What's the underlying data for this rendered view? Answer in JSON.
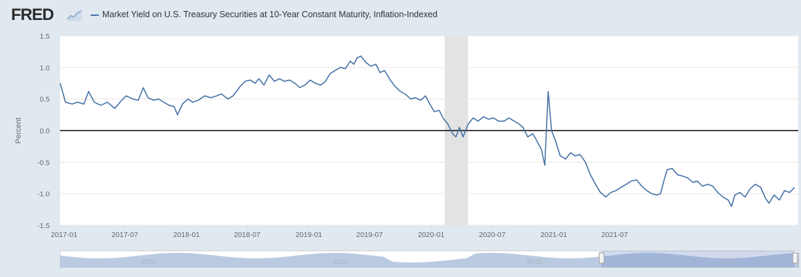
{
  "header": {
    "logo_text": "FRED",
    "logo_icon": "fred-chart-icon",
    "legend_label": "Market Yield on U.S. Treasury Securities at 10-Year Constant Maturity, Inflation-Indexed"
  },
  "colors": {
    "series": "#4572a7",
    "recession": "#e3e3e3",
    "zero_line": "#000000",
    "background": "#e1e9f0"
  },
  "navigator": {
    "labels": [
      "2005",
      "2010",
      "2015",
      "2020"
    ]
  },
  "chart_data": {
    "type": "line",
    "ylabel": "Percent",
    "ylim": [
      -1.5,
      1.5
    ],
    "y_ticks": [
      1.5,
      1.0,
      0.5,
      0.0,
      -0.5,
      -1.0,
      -1.5
    ],
    "x_ticks": [
      "2017-01",
      "2017-07",
      "2018-01",
      "2018-07",
      "2019-01",
      "2019-07",
      "2020-01",
      "2020-07",
      "2021-01",
      "2021-07"
    ],
    "grid": true,
    "recession_shading": {
      "start": "2020-02",
      "end": "2020-04"
    },
    "series": [
      {
        "values": [
          [
            "2016-12-20",
            0.75
          ],
          [
            "2017-01-05",
            0.45
          ],
          [
            "2017-01-25",
            0.42
          ],
          [
            "2017-02-10",
            0.45
          ],
          [
            "2017-03-01",
            0.42
          ],
          [
            "2017-03-15",
            0.62
          ],
          [
            "2017-04-01",
            0.45
          ],
          [
            "2017-04-20",
            0.4
          ],
          [
            "2017-05-10",
            0.45
          ],
          [
            "2017-06-01",
            0.35
          ],
          [
            "2017-06-20",
            0.47
          ],
          [
            "2017-07-05",
            0.55
          ],
          [
            "2017-07-25",
            0.5
          ],
          [
            "2017-08-10",
            0.48
          ],
          [
            "2017-08-25",
            0.68
          ],
          [
            "2017-09-08",
            0.52
          ],
          [
            "2017-09-25",
            0.48
          ],
          [
            "2017-10-10",
            0.5
          ],
          [
            "2017-10-25",
            0.45
          ],
          [
            "2017-11-10",
            0.4
          ],
          [
            "2017-11-25",
            0.38
          ],
          [
            "2017-12-05",
            0.25
          ],
          [
            "2017-12-20",
            0.42
          ],
          [
            "2018-01-05",
            0.5
          ],
          [
            "2018-01-20",
            0.45
          ],
          [
            "2018-02-05",
            0.48
          ],
          [
            "2018-02-25",
            0.55
          ],
          [
            "2018-03-15",
            0.52
          ],
          [
            "2018-04-01",
            0.55
          ],
          [
            "2018-04-15",
            0.58
          ],
          [
            "2018-05-05",
            0.5
          ],
          [
            "2018-05-20",
            0.55
          ],
          [
            "2018-06-10",
            0.7
          ],
          [
            "2018-06-25",
            0.78
          ],
          [
            "2018-07-10",
            0.8
          ],
          [
            "2018-07-25",
            0.75
          ],
          [
            "2018-08-05",
            0.82
          ],
          [
            "2018-08-20",
            0.72
          ],
          [
            "2018-09-05",
            0.88
          ],
          [
            "2018-09-20",
            0.78
          ],
          [
            "2018-10-05",
            0.82
          ],
          [
            "2018-10-20",
            0.78
          ],
          [
            "2018-11-05",
            0.8
          ],
          [
            "2018-11-20",
            0.75
          ],
          [
            "2018-12-05",
            0.68
          ],
          [
            "2018-12-20",
            0.72
          ],
          [
            "2019-01-05",
            0.8
          ],
          [
            "2019-01-20",
            0.75
          ],
          [
            "2019-02-05",
            0.72
          ],
          [
            "2019-02-20",
            0.78
          ],
          [
            "2019-03-05",
            0.9
          ],
          [
            "2019-03-20",
            0.95
          ],
          [
            "2019-04-05",
            1.0
          ],
          [
            "2019-04-20",
            0.98
          ],
          [
            "2019-05-05",
            1.1
          ],
          [
            "2019-05-15",
            1.05
          ],
          [
            "2019-05-25",
            1.15
          ],
          [
            "2019-06-05",
            1.18
          ],
          [
            "2019-06-20",
            1.08
          ],
          [
            "2019-07-05",
            1.02
          ],
          [
            "2019-07-20",
            1.05
          ],
          [
            "2019-08-01",
            0.92
          ],
          [
            "2019-08-15",
            0.95
          ],
          [
            "2019-09-01",
            0.8
          ],
          [
            "2019-09-15",
            0.7
          ],
          [
            "2019-10-01",
            0.62
          ],
          [
            "2019-10-15",
            0.58
          ],
          [
            "2019-11-01",
            0.5
          ],
          [
            "2019-11-15",
            0.52
          ],
          [
            "2019-12-01",
            0.48
          ],
          [
            "2019-12-15",
            0.55
          ],
          [
            "2019-12-30",
            0.4
          ],
          [
            "2020-01-10",
            0.3
          ],
          [
            "2020-01-25",
            0.32
          ],
          [
            "2020-02-05",
            0.2
          ],
          [
            "2020-02-20",
            0.1
          ],
          [
            "2020-03-05",
            -0.05
          ],
          [
            "2020-03-15",
            -0.1
          ],
          [
            "2020-03-25",
            0.05
          ],
          [
            "2020-04-05",
            -0.1
          ],
          [
            "2020-04-20",
            0.1
          ],
          [
            "2020-05-05",
            0.2
          ],
          [
            "2020-05-20",
            0.15
          ],
          [
            "2020-06-05",
            0.22
          ],
          [
            "2020-06-20",
            0.18
          ],
          [
            "2020-07-05",
            0.2
          ],
          [
            "2020-07-20",
            0.15
          ],
          [
            "2020-08-05",
            0.15
          ],
          [
            "2020-08-20",
            0.2
          ],
          [
            "2020-09-05",
            0.15
          ],
          [
            "2020-09-20",
            0.1
          ],
          [
            "2020-10-01",
            0.05
          ],
          [
            "2020-10-15",
            -0.1
          ],
          [
            "2020-10-30",
            -0.05
          ],
          [
            "2020-11-10",
            -0.15
          ],
          [
            "2020-11-25",
            -0.3
          ],
          [
            "2020-12-05",
            -0.55
          ],
          [
            "2020-12-15",
            0.62
          ],
          [
            "2020-12-25",
            0.0
          ],
          [
            "2021-01-05",
            -0.15
          ],
          [
            "2021-01-20",
            -0.4
          ],
          [
            "2021-02-05",
            -0.45
          ],
          [
            "2021-02-20",
            -0.35
          ],
          [
            "2021-03-05",
            -0.4
          ],
          [
            "2021-03-20",
            -0.38
          ],
          [
            "2021-04-05",
            -0.5
          ],
          [
            "2021-04-20",
            -0.7
          ],
          [
            "2021-05-05",
            -0.85
          ],
          [
            "2021-05-20",
            -0.98
          ],
          [
            "2021-06-05",
            -1.05
          ],
          [
            "2021-06-20",
            -0.98
          ],
          [
            "2021-07-05",
            -0.95
          ],
          [
            "2021-07-20",
            -0.9
          ],
          [
            "2021-08-05",
            -0.85
          ],
          [
            "2021-08-20",
            -0.8
          ],
          [
            "2021-09-05",
            -0.78
          ],
          [
            "2021-09-20",
            -0.88
          ],
          [
            "2021-10-05",
            -0.95
          ],
          [
            "2021-10-20",
            -1.0
          ],
          [
            "2021-11-05",
            -1.02
          ],
          [
            "2021-11-15",
            -1.0
          ],
          [
            "2021-11-25",
            -0.8
          ],
          [
            "2021-12-05",
            -0.62
          ],
          [
            "2021-12-20",
            -0.6
          ],
          [
            "2022-01-05",
            -0.7
          ],
          [
            "2022-01-20",
            -0.72
          ],
          [
            "2022-02-05",
            -0.75
          ],
          [
            "2022-02-20",
            -0.82
          ],
          [
            "2022-03-05",
            -0.8
          ],
          [
            "2022-03-20",
            -0.88
          ],
          [
            "2022-04-05",
            -0.85
          ],
          [
            "2022-04-20",
            -0.88
          ],
          [
            "2022-05-05",
            -0.98
          ],
          [
            "2022-05-20",
            -1.05
          ],
          [
            "2022-06-05",
            -1.1
          ],
          [
            "2022-06-15",
            -1.2
          ],
          [
            "2022-06-25",
            -1.02
          ],
          [
            "2022-07-10",
            -0.98
          ],
          [
            "2022-07-25",
            -1.05
          ],
          [
            "2022-08-10",
            -0.92
          ],
          [
            "2022-08-25",
            -0.85
          ],
          [
            "2022-09-10",
            -0.9
          ],
          [
            "2022-09-25",
            -1.08
          ],
          [
            "2022-10-05",
            -1.15
          ],
          [
            "2022-10-20",
            -1.02
          ],
          [
            "2022-11-05",
            -1.1
          ],
          [
            "2022-11-20",
            -0.95
          ],
          [
            "2022-12-05",
            -0.98
          ],
          [
            "2022-12-20",
            -0.9
          ]
        ]
      }
    ]
  }
}
